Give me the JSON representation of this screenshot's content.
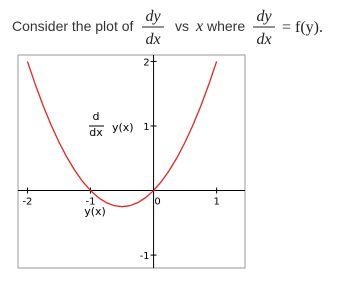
{
  "question": {
    "prefix": "Consider the plot of",
    "frac1": {
      "num": "dy",
      "den": "dx"
    },
    "vs": "vs",
    "var": "x",
    "where": "where",
    "frac2": {
      "num": "dy",
      "den": "dx"
    },
    "suffix": "= f(y)."
  },
  "chart_data": {
    "type": "line",
    "xlabel": "y(x)",
    "ylabel_frac": {
      "num": "d",
      "den": "dx"
    },
    "ylabel": "y(x)",
    "x": [
      -2,
      -1.875,
      -1.75,
      -1.625,
      -1.5,
      -1.375,
      -1.25,
      -1.125,
      -1,
      -0.875,
      -0.75,
      -0.625,
      -0.5,
      -0.375,
      -0.25,
      -0.125,
      0,
      0.125,
      0.25,
      0.375,
      0.5,
      0.625,
      0.75,
      0.875,
      1
    ],
    "values": [
      2,
      1.640625,
      1.3125,
      1.015625,
      0.75,
      0.515625,
      0.3125,
      0.140625,
      0,
      -0.109375,
      -0.1875,
      -0.234375,
      -0.25,
      -0.234375,
      -0.1875,
      -0.109375,
      0,
      0.140625,
      0.3125,
      0.515625,
      0.75,
      1.015625,
      1.3125,
      1.640625,
      2
    ],
    "color": "#e8251e",
    "xlim": [
      -2.15,
      1.45
    ],
    "ylim": [
      -1.2,
      2.1
    ],
    "xticks": [
      -2,
      -1,
      0,
      1
    ],
    "yticks": [
      -1,
      1,
      2
    ]
  }
}
